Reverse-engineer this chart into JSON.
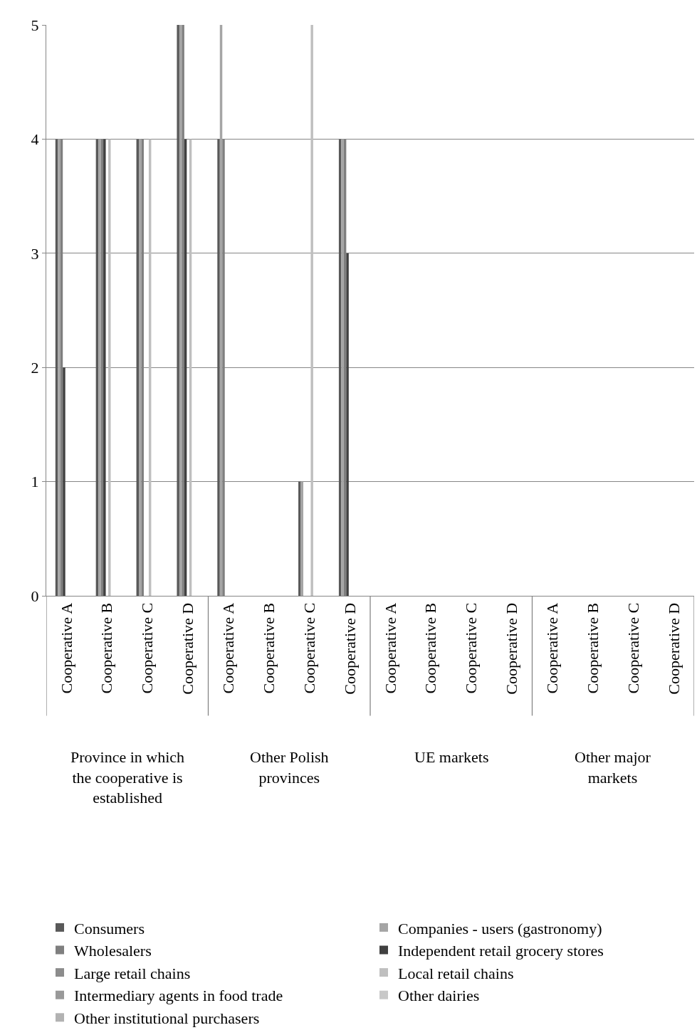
{
  "chart_data": {
    "type": "bar",
    "categories": [
      "Cooperative A",
      "Cooperative B",
      "Cooperative C",
      "Cooperative D",
      "Cooperative A",
      "Cooperative B",
      "Cooperative C",
      "Cooperative D",
      "Cooperative A",
      "Cooperative B",
      "Cooperative C",
      "Cooperative D",
      "Cooperative A",
      "Cooperative B",
      "Cooperative C",
      "Cooperative D"
    ],
    "series": [
      {
        "name": "Consumers",
        "color": "#595959",
        "values": [
          4,
          4,
          4,
          5,
          4,
          0,
          1,
          4,
          0,
          0,
          0,
          0,
          0,
          0,
          0,
          0
        ]
      },
      {
        "name": "Companies - users (gastronomy)",
        "color": "#a5a5a5",
        "values": [
          4,
          4,
          4,
          5,
          5,
          0,
          1,
          4,
          0,
          0,
          0,
          0,
          0,
          0,
          0,
          0
        ]
      },
      {
        "name": "Wholesalers",
        "color": "#7f7f7f",
        "values": [
          4,
          4,
          4,
          5,
          4,
          0,
          0,
          4,
          0,
          0,
          0,
          0,
          0,
          0,
          0,
          0
        ]
      },
      {
        "name": "Independent retail grocery stores",
        "color": "#404040",
        "values": [
          2,
          4,
          0,
          4,
          0,
          0,
          0,
          3,
          0,
          0,
          0,
          0,
          0,
          0,
          0,
          0
        ]
      },
      {
        "name": "Large retail chains",
        "color": "#8c8c8c",
        "values": [
          0,
          0,
          0,
          0,
          0,
          0,
          0,
          0,
          0,
          0,
          0,
          0,
          0,
          0,
          0,
          0
        ]
      },
      {
        "name": "Local retail chains",
        "color": "#bfbfbf",
        "values": [
          0,
          4,
          4,
          4,
          0,
          0,
          5,
          0,
          0,
          0,
          0,
          0,
          0,
          0,
          0,
          0
        ]
      },
      {
        "name": "Intermediary agents in food trade",
        "color": "#999999",
        "values": [
          0,
          0,
          0,
          0,
          0,
          0,
          0,
          0,
          0,
          0,
          0,
          0,
          0,
          0,
          0,
          0
        ]
      },
      {
        "name": "Other dairies",
        "color": "#c8c8c8",
        "values": [
          0,
          0,
          0,
          0,
          0,
          0,
          0,
          0,
          0,
          0,
          0,
          0,
          0,
          0,
          0,
          0
        ]
      },
      {
        "name": "Other institutional purchasers",
        "color": "#b2b2b2",
        "values": [
          0,
          0,
          0,
          0,
          0,
          0,
          0,
          0,
          0,
          0,
          0,
          0,
          0,
          0,
          0,
          0
        ]
      }
    ],
    "annotations": [
      "Province in which the cooperative is established",
      "Other Polish provinces",
      "UE markets",
      "Other major markets"
    ],
    "ylim": [
      0,
      5
    ],
    "yticks": [
      0,
      1,
      2,
      3,
      4,
      5
    ],
    "grid": "y",
    "legend": "bottom"
  }
}
